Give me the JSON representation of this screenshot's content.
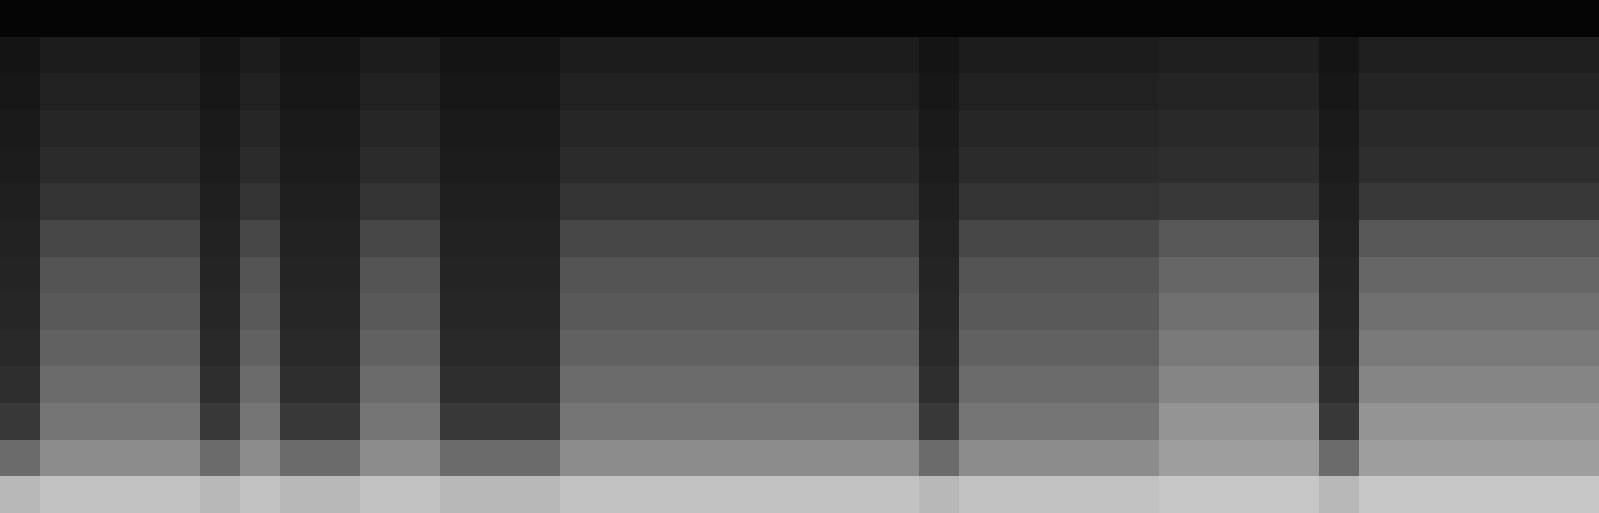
{
  "chart_data": {
    "type": "heatmap",
    "tick_labels": false,
    "zlim": [
      0,
      100
    ],
    "cells": [
      [
        2,
        2,
        2,
        2,
        2,
        2,
        2,
        2,
        2,
        2,
        2,
        2,
        2,
        2,
        2,
        2,
        2,
        2,
        2,
        2,
        2,
        2,
        2,
        2,
        2,
        2,
        2,
        2,
        2,
        2,
        2,
        2,
        2,
        2,
        2,
        2,
        2,
        2,
        2,
        2
      ],
      [
        8,
        11,
        11,
        11,
        11,
        8,
        11,
        8,
        8,
        11,
        11,
        8,
        8,
        8,
        11,
        11,
        11,
        11,
        11,
        11,
        11,
        11,
        11,
        8,
        11,
        11,
        11,
        11,
        11,
        12,
        12,
        12,
        12,
        8,
        12,
        12,
        12,
        12,
        12,
        12
      ],
      [
        9,
        13,
        13,
        13,
        13,
        9,
        13,
        9,
        9,
        13,
        13,
        9,
        9,
        9,
        13,
        13,
        13,
        13,
        13,
        13,
        13,
        13,
        13,
        9,
        13,
        13,
        13,
        13,
        13,
        14,
        14,
        14,
        14,
        9,
        14,
        14,
        14,
        14,
        14,
        14
      ],
      [
        10,
        15,
        15,
        15,
        15,
        10,
        15,
        10,
        10,
        15,
        15,
        10,
        10,
        10,
        15,
        15,
        15,
        15,
        15,
        15,
        15,
        15,
        15,
        10,
        15,
        15,
        15,
        15,
        15,
        16,
        16,
        16,
        16,
        10,
        16,
        16,
        16,
        16,
        16,
        16
      ],
      [
        11,
        17,
        17,
        17,
        17,
        11,
        17,
        11,
        11,
        17,
        17,
        11,
        11,
        11,
        17,
        17,
        17,
        17,
        17,
        17,
        17,
        17,
        17,
        11,
        17,
        17,
        17,
        17,
        17,
        18,
        18,
        18,
        18,
        11,
        18,
        18,
        18,
        18,
        18,
        18
      ],
      [
        12,
        20,
        20,
        20,
        20,
        12,
        20,
        12,
        12,
        20,
        20,
        12,
        12,
        12,
        20,
        20,
        20,
        20,
        20,
        20,
        20,
        20,
        20,
        12,
        20,
        20,
        20,
        20,
        20,
        22,
        22,
        22,
        22,
        12,
        22,
        22,
        22,
        22,
        22,
        22
      ],
      [
        13,
        28,
        28,
        28,
        28,
        13,
        28,
        13,
        13,
        28,
        28,
        13,
        13,
        13,
        28,
        28,
        28,
        28,
        28,
        28,
        28,
        28,
        28,
        13,
        28,
        28,
        28,
        28,
        28,
        34,
        34,
        34,
        34,
        13,
        34,
        34,
        34,
        34,
        34,
        34
      ],
      [
        14,
        33,
        33,
        33,
        33,
        14,
        33,
        14,
        14,
        33,
        33,
        14,
        14,
        14,
        33,
        33,
        33,
        33,
        33,
        33,
        33,
        33,
        33,
        14,
        33,
        33,
        33,
        33,
        33,
        40,
        40,
        40,
        40,
        14,
        40,
        40,
        40,
        40,
        40,
        40
      ],
      [
        15,
        35,
        35,
        35,
        35,
        15,
        35,
        15,
        15,
        35,
        35,
        15,
        15,
        15,
        35,
        35,
        35,
        35,
        35,
        35,
        35,
        35,
        35,
        15,
        35,
        35,
        35,
        35,
        35,
        44,
        44,
        44,
        44,
        15,
        44,
        44,
        44,
        44,
        44,
        44
      ],
      [
        16,
        38,
        38,
        38,
        38,
        16,
        38,
        16,
        16,
        38,
        38,
        16,
        16,
        16,
        38,
        38,
        38,
        38,
        38,
        38,
        38,
        38,
        38,
        16,
        38,
        38,
        38,
        38,
        38,
        48,
        48,
        48,
        48,
        16,
        48,
        48,
        48,
        48,
        48,
        48
      ],
      [
        18,
        42,
        42,
        42,
        42,
        18,
        42,
        18,
        18,
        42,
        42,
        18,
        18,
        18,
        42,
        42,
        42,
        42,
        42,
        42,
        42,
        42,
        42,
        18,
        42,
        42,
        42,
        42,
        42,
        52,
        52,
        52,
        52,
        18,
        52,
        52,
        52,
        52,
        52,
        52
      ],
      [
        22,
        46,
        46,
        46,
        46,
        22,
        46,
        22,
        22,
        46,
        46,
        22,
        22,
        22,
        46,
        46,
        46,
        46,
        46,
        46,
        46,
        46,
        46,
        22,
        46,
        46,
        46,
        46,
        46,
        58,
        58,
        58,
        58,
        22,
        58,
        58,
        58,
        58,
        58,
        58
      ],
      [
        42,
        55,
        55,
        55,
        55,
        42,
        55,
        42,
        42,
        55,
        55,
        42,
        42,
        42,
        55,
        55,
        55,
        55,
        55,
        55,
        55,
        55,
        55,
        42,
        55,
        55,
        55,
        55,
        55,
        62,
        62,
        62,
        62,
        42,
        62,
        62,
        62,
        62,
        62,
        62
      ],
      [
        72,
        76,
        76,
        76,
        76,
        72,
        76,
        72,
        72,
        76,
        76,
        72,
        72,
        72,
        76,
        76,
        76,
        76,
        76,
        76,
        76,
        76,
        76,
        72,
        76,
        76,
        76,
        76,
        76,
        78,
        78,
        78,
        78,
        72,
        78,
        78,
        78,
        78,
        78,
        78
      ]
    ]
  }
}
